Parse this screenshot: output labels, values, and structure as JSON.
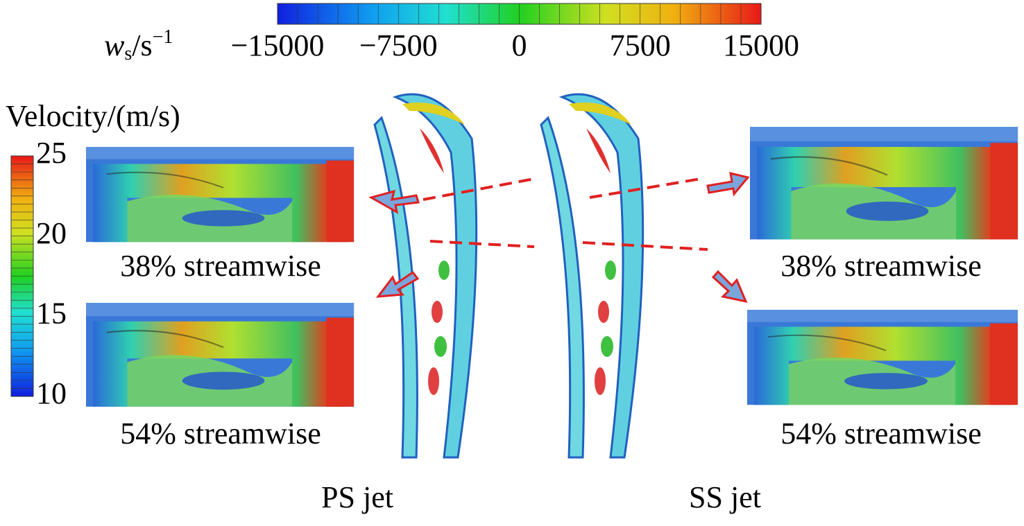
{
  "vorticity_colorbar": {
    "symbol": "w",
    "subscript": "s",
    "unit": "/s",
    "superscript": "−1",
    "ticks": [
      {
        "value": -15000,
        "label": "−15000"
      },
      {
        "value": -7500,
        "label": "−7500"
      },
      0,
      7500,
      15000
    ]
  },
  "velocity_colorbar": {
    "title": "Velocity/(m/s)",
    "ticks": [
      25,
      20,
      15,
      10
    ]
  },
  "ps_panels": {
    "top_caption": "38% streamwise",
    "bottom_caption": "54% streamwise",
    "label": "PS jet"
  },
  "ss_panels": {
    "top_caption": "38% streamwise",
    "bottom_caption": "54% streamwise",
    "label": "SS jet"
  }
}
